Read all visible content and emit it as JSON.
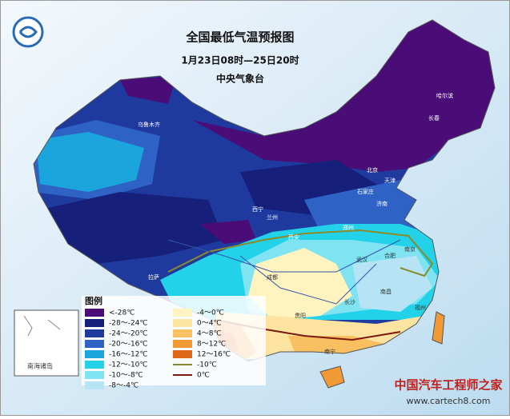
{
  "header": {
    "title": "全国最低气温预报图",
    "period": "1月23日08时—25日20时",
    "issuer": "中央气象台"
  },
  "legend": {
    "title": "图例",
    "items": [
      {
        "label": "<-28℃",
        "color": "#4a0d78"
      },
      {
        "label": "-28～-24℃",
        "color": "#16207a"
      },
      {
        "label": "-24～-20℃",
        "color": "#1f3a9e"
      },
      {
        "label": "-20～-16℃",
        "color": "#2e62c4"
      },
      {
        "label": "-16～-12℃",
        "color": "#1aa6dc"
      },
      {
        "label": "-12～-10℃",
        "color": "#22d2e8"
      },
      {
        "label": "-10～-8℃",
        "color": "#7fe3f2"
      },
      {
        "label": "-8～-4℃",
        "color": "#b6e4f5"
      },
      {
        "label": "-4～0℃",
        "color": "#fff3c0"
      },
      {
        "label": "0～4℃",
        "color": "#fde3a0"
      },
      {
        "label": "4～8℃",
        "color": "#f8c060"
      },
      {
        "label": "8～12℃",
        "color": "#f19a35"
      },
      {
        "label": "12～16℃",
        "color": "#e0661a"
      }
    ],
    "lines": [
      {
        "label": "-10℃",
        "color": "#8a8a2a"
      },
      {
        "label": "0℃",
        "color": "#7a1a10"
      }
    ]
  },
  "inset": {
    "label": "南海诸岛"
  },
  "cities": [
    "乌鲁木齐",
    "哈尔滨",
    "长春",
    "北京",
    "天津",
    "石家庄",
    "济南",
    "郑州",
    "西安",
    "西宁",
    "兰州",
    "拉萨",
    "成都",
    "武汉",
    "合肥",
    "南京",
    "长沙",
    "南昌",
    "贵阳",
    "南宁",
    "福州"
  ],
  "watermark": {
    "site": "中国汽车工程师之家",
    "url": "www.cartech8.com"
  }
}
